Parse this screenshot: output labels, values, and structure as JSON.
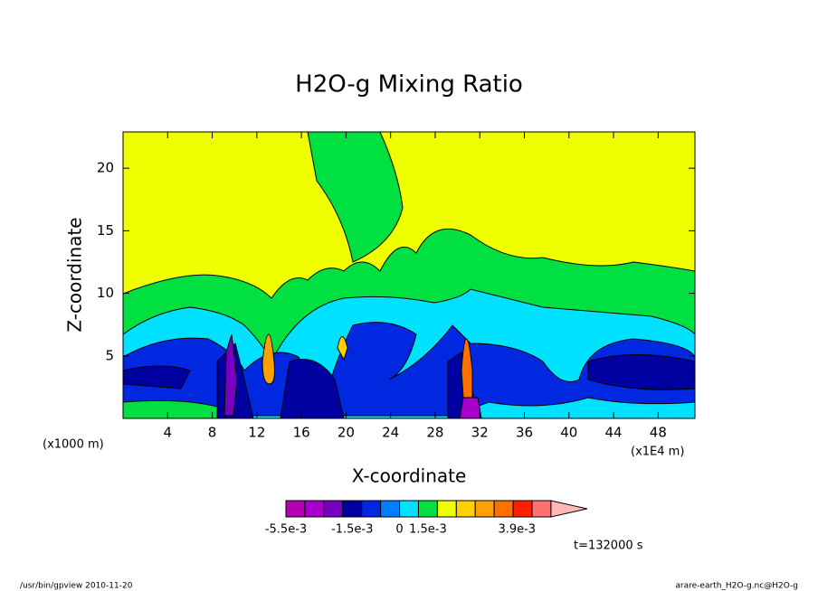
{
  "chart_data": {
    "type": "contour",
    "title": "H2O-g Mixing Ratio",
    "x_label": "X-coordinate",
    "y_label": "Z-coordinate",
    "x_unit": "(x1000 m)",
    "x_scale_note": "(x1E4 m)",
    "xlim": [
      0,
      51.3
    ],
    "xticks": [
      4,
      8,
      12,
      16,
      20,
      24,
      28,
      32,
      36,
      40,
      44,
      48
    ],
    "ylim": [
      0,
      22.9
    ],
    "yticks": [
      5,
      10,
      15,
      20
    ],
    "colorbar": {
      "colors": [
        "#b400b4",
        "#a800c8",
        "#7800c0",
        "#0000a0",
        "#0028e0",
        "#0080ff",
        "#00e0ff",
        "#00e040",
        "#f0ff00",
        "#ffd000",
        "#ffa000",
        "#ff7000",
        "#ff2000",
        "#ff7070",
        "#ffb8b8"
      ],
      "ticks": [
        {
          "value": -0.0055,
          "label": "-5.5e-3"
        },
        {
          "value": -0.0015,
          "label": "-1.5e-3"
        },
        0,
        {
          "value": 0.0015,
          "label": "1.5e-3"
        },
        {
          "value": 0.0039,
          "label": "3.9e-3"
        }
      ]
    },
    "time_label": "t=132000 s",
    "footer_left": "/usr/bin/gpview  2010-11-20",
    "footer_right": "arare-earth_H2O-g.nc@H2O-g"
  }
}
